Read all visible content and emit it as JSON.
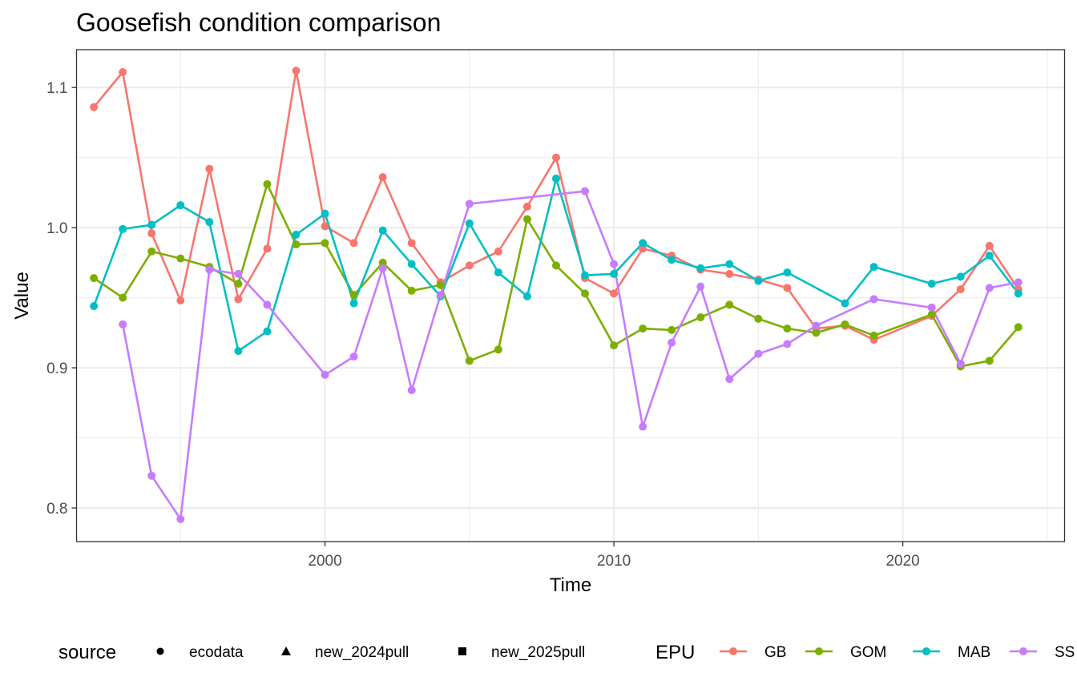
{
  "chart_data": {
    "type": "line",
    "title": "Goosefish condition comparison",
    "xlabel": "Time",
    "ylabel": "Value",
    "xlim": [
      1991.4,
      2025.6
    ],
    "ylim": [
      0.776,
      1.127
    ],
    "x_ticks": [
      2000,
      2010,
      2020
    ],
    "y_ticks": [
      0.8,
      0.9,
      1.0,
      1.1
    ],
    "y_tick_labels": [
      "0.8",
      "0.9",
      "1.0",
      "1.1"
    ],
    "grid": true,
    "legend_position": "bottom",
    "legends": {
      "source": {
        "title": "source",
        "items": [
          {
            "label": "ecodata",
            "shape": "circle"
          },
          {
            "label": "new_2024pull",
            "shape": "triangle"
          },
          {
            "label": "new_2025pull",
            "shape": "square"
          }
        ]
      },
      "epu": {
        "title": "EPU",
        "items": [
          {
            "label": "GB",
            "color": "#F8766D"
          },
          {
            "label": "GOM",
            "color": "#7CAE00"
          },
          {
            "label": "MAB",
            "color": "#00BFC4"
          },
          {
            "label": "SS",
            "color": "#C77CFF"
          }
        ]
      }
    },
    "series": [
      {
        "name": "GB",
        "color": "#F8766D",
        "x": [
          1992,
          1993,
          1994,
          1995,
          1996,
          1997,
          1998,
          1999,
          2000,
          2001,
          2002,
          2003,
          2004,
          2005,
          2006,
          2007,
          2008,
          2009,
          2010,
          2011,
          2012,
          2013,
          2014,
          2015,
          2016,
          2017,
          2018,
          2019,
          2021,
          2022,
          2023,
          2024
        ],
        "y": [
          1.086,
          1.111,
          0.996,
          0.948,
          1.042,
          0.949,
          0.985,
          1.112,
          1.001,
          0.989,
          1.036,
          0.989,
          0.961,
          0.973,
          0.983,
          1.015,
          1.05,
          0.964,
          0.953,
          0.985,
          0.98,
          0.97,
          0.967,
          0.963,
          0.957,
          0.928,
          0.93,
          0.92,
          0.937,
          0.956,
          0.987,
          0.956
        ]
      },
      {
        "name": "GOM",
        "color": "#7CAE00",
        "x": [
          1992,
          1993,
          1994,
          1995,
          1996,
          1997,
          1998,
          1999,
          2000,
          2001,
          2002,
          2003,
          2004,
          2005,
          2006,
          2007,
          2008,
          2009,
          2010,
          2011,
          2012,
          2013,
          2014,
          2015,
          2016,
          2017,
          2018,
          2019,
          2021,
          2022,
          2023,
          2024
        ],
        "y": [
          0.964,
          0.95,
          0.983,
          0.978,
          0.972,
          0.96,
          1.031,
          0.988,
          0.989,
          0.952,
          0.975,
          0.955,
          0.959,
          0.905,
          0.913,
          1.006,
          0.973,
          0.953,
          0.916,
          0.928,
          0.927,
          0.936,
          0.945,
          0.935,
          0.928,
          0.925,
          0.931,
          0.923,
          0.938,
          0.901,
          0.905,
          0.929
        ]
      },
      {
        "name": "MAB",
        "color": "#00BFC4",
        "x": [
          1992,
          1993,
          1994,
          1995,
          1996,
          1997,
          1998,
          1999,
          2000,
          2001,
          2002,
          2003,
          2004,
          2005,
          2006,
          2007,
          2008,
          2009,
          2010,
          2011,
          2012,
          2013,
          2014,
          2015,
          2016,
          2018,
          2019,
          2021,
          2022,
          2023,
          2024
        ],
        "y": [
          0.944,
          0.999,
          1.002,
          1.016,
          1.004,
          0.912,
          0.926,
          0.995,
          1.01,
          0.946,
          0.998,
          0.974,
          0.951,
          1.003,
          0.968,
          0.951,
          1.035,
          0.966,
          0.967,
          0.989,
          0.977,
          0.971,
          0.974,
          0.962,
          0.968,
          0.946,
          0.972,
          0.96,
          0.965,
          0.98,
          0.953
        ]
      },
      {
        "name": "SS",
        "color": "#C77CFF",
        "x": [
          1993,
          1994,
          1995,
          1996,
          1997,
          1998,
          2000,
          2001,
          2002,
          2003,
          2004,
          2005,
          2009,
          2010,
          2011,
          2012,
          2013,
          2014,
          2015,
          2016,
          2017,
          2019,
          2021,
          2022,
          2023,
          2024
        ],
        "y": [
          0.931,
          0.823,
          0.792,
          0.97,
          0.967,
          0.945,
          0.895,
          0.908,
          0.971,
          0.884,
          0.952,
          1.017,
          1.026,
          0.974,
          0.858,
          0.918,
          0.958,
          0.892,
          0.91,
          0.917,
          0.93,
          0.949,
          0.943,
          0.903,
          0.957,
          0.961
        ]
      }
    ]
  }
}
